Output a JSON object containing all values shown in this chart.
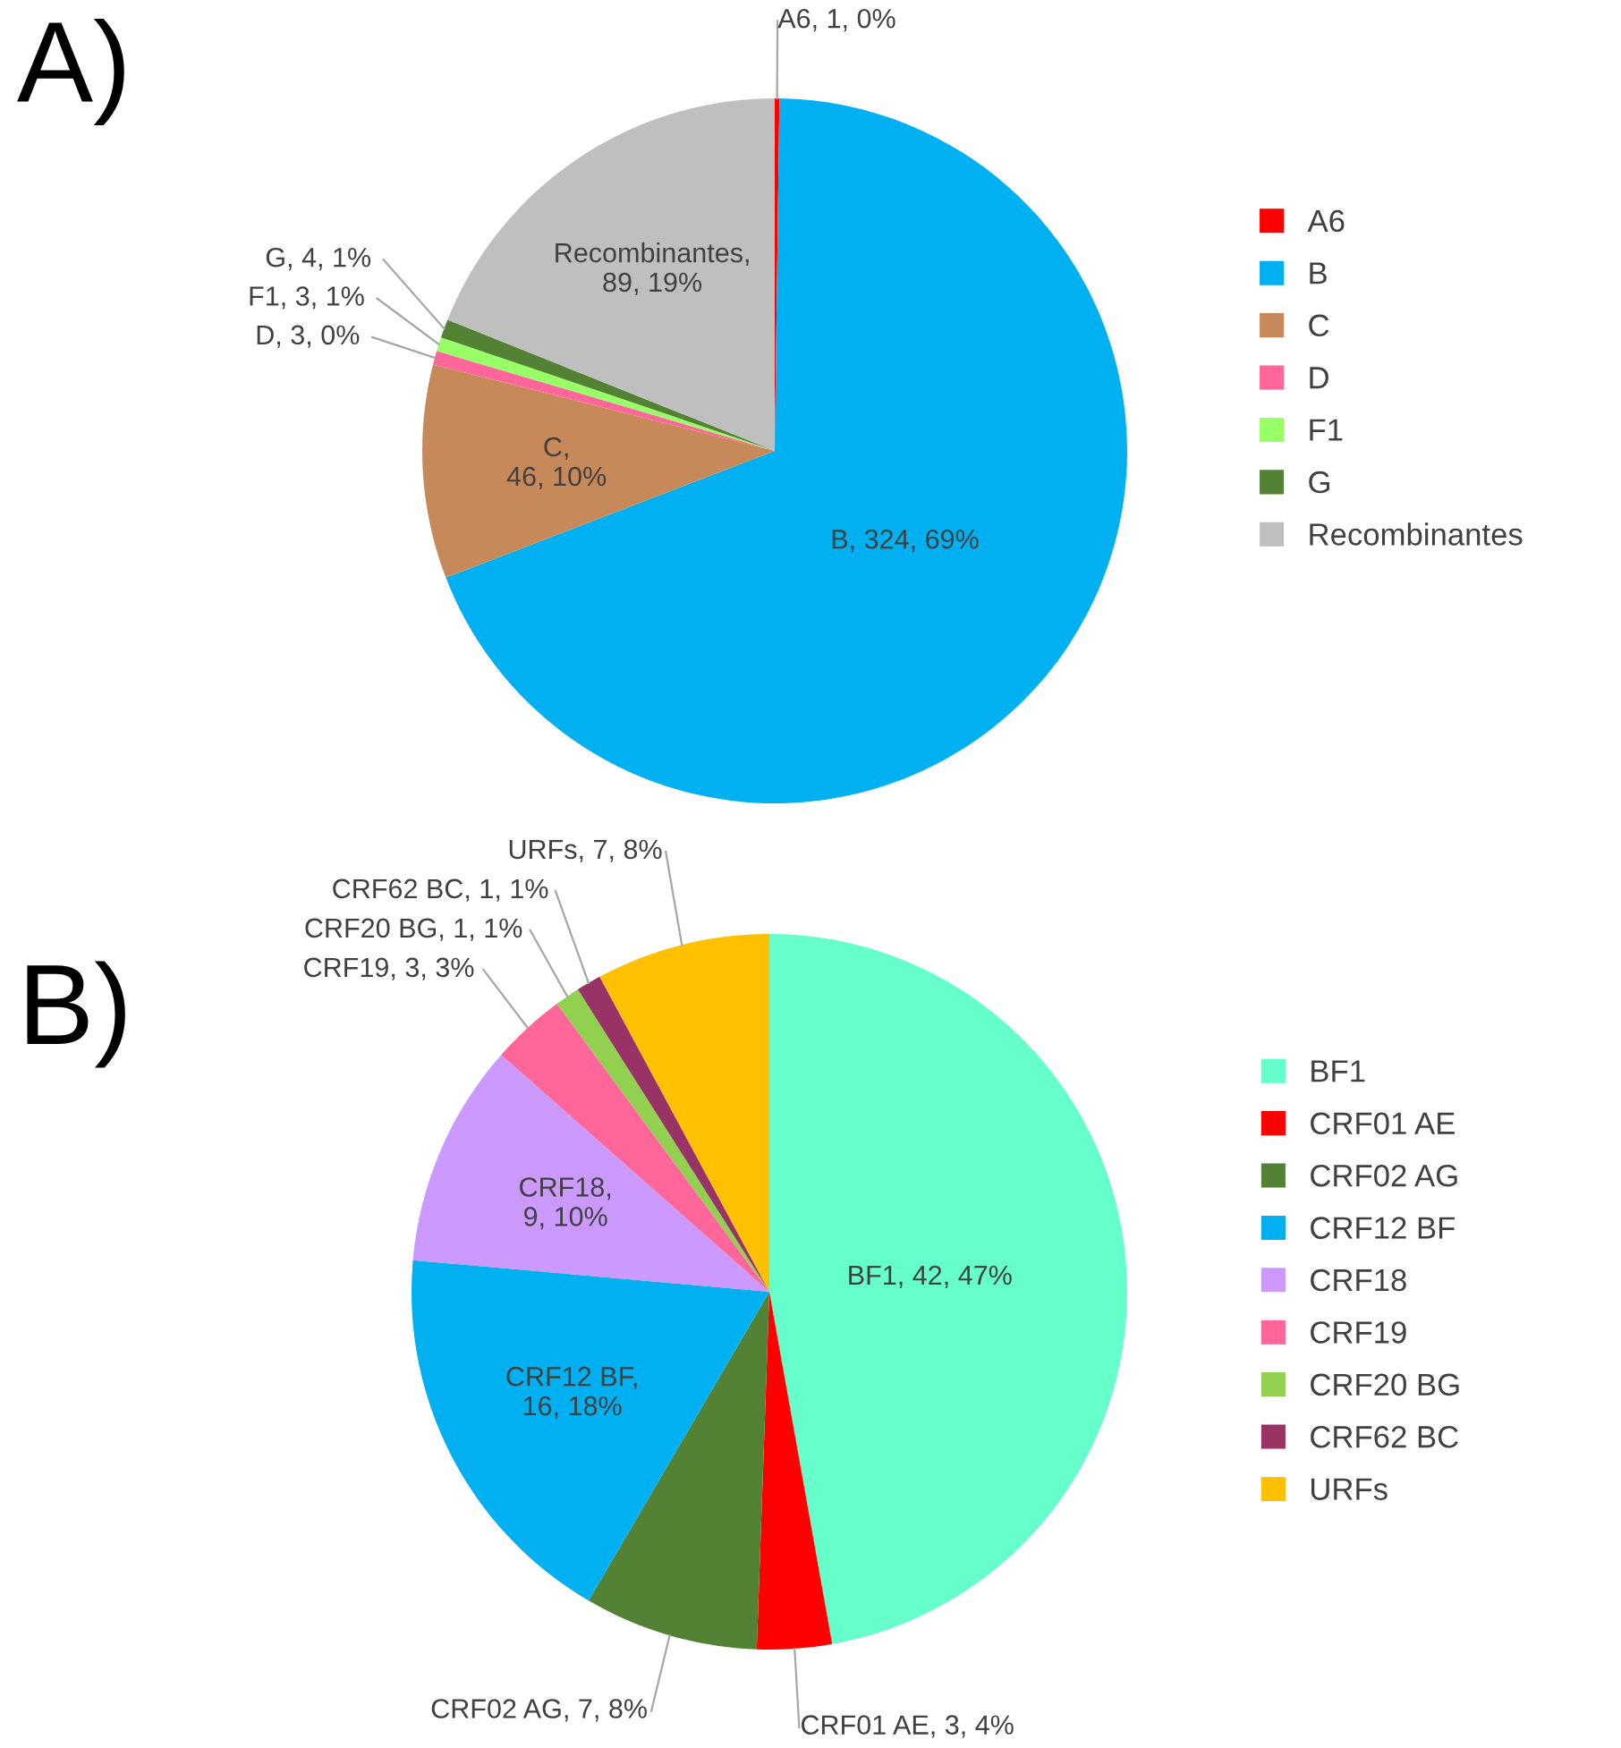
{
  "chart_data": [
    {
      "type": "pie",
      "title": "A)",
      "legend": "right",
      "categories": [
        "A6",
        "B",
        "C",
        "D",
        "F1",
        "G",
        "Recombinantes"
      ],
      "values": [
        1,
        324,
        46,
        3,
        3,
        4,
        89
      ],
      "colors": [
        "#ff0000",
        "#00b0f0",
        "#c8895a",
        "#ff6699",
        "#99ff66",
        "#548235",
        "#bfbfbf"
      ],
      "value_labels": [
        "A6, 1, 0%",
        "B, 324, 69%",
        "C, 46, 10%",
        "D, 3, 0%",
        "F1, 3, 1%",
        "G, 4, 1%",
        "Recombinantes, 89, 19%"
      ]
    },
    {
      "type": "pie",
      "title": "B)",
      "legend": "right",
      "categories": [
        "BF1",
        "CRF01 AE",
        "CRF02 AG",
        "CRF12 BF",
        "CRF18",
        "CRF19",
        "CRF20 BG",
        "CRF62 BC",
        "URFs"
      ],
      "values": [
        42,
        3,
        7,
        16,
        9,
        3,
        1,
        1,
        7
      ],
      "colors": [
        "#66ffcc",
        "#ff0000",
        "#548235",
        "#00b0f0",
        "#cc99ff",
        "#ff6699",
        "#92d050",
        "#993366",
        "#ffc000"
      ],
      "value_labels": [
        "BF1, 42, 47%",
        "CRF01 AE, 3, 4%",
        "CRF02 AG, 7, 8%",
        "CRF12 BF, 16, 18%",
        "CRF18, 9, 10%",
        "CRF19, 3, 3%",
        "CRF20 BG, 1, 1%",
        "CRF62 BC, 1, 1%",
        "URFs, 7, 8%"
      ]
    }
  ]
}
